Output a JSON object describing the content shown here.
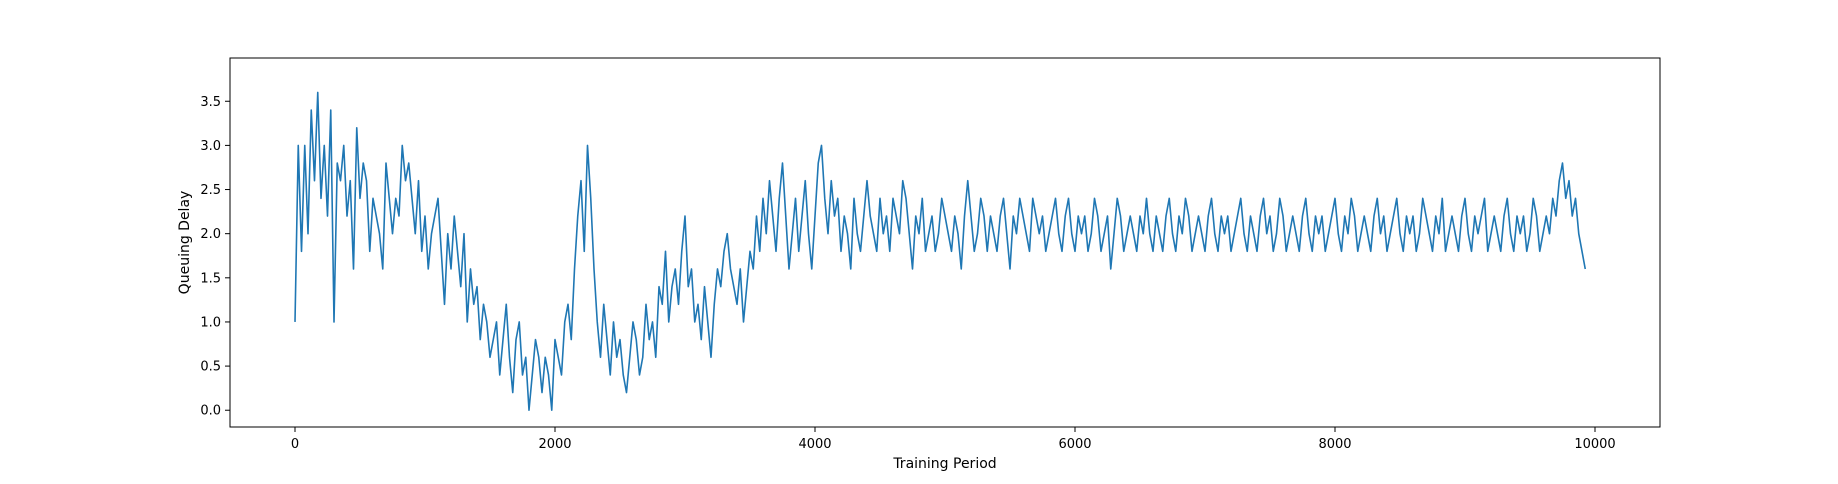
{
  "chart_data": {
    "type": "line",
    "title": "",
    "xlabel": "Training Period",
    "ylabel": "Queuing Delay",
    "xlim": [
      -500,
      10500
    ],
    "ylim": [
      -0.19,
      3.99
    ],
    "x_ticks": [
      0,
      2000,
      4000,
      6000,
      8000,
      10000
    ],
    "x_tick_labels": [
      "0",
      "2000",
      "4000",
      "6000",
      "8000",
      "10000"
    ],
    "y_ticks": [
      0.0,
      0.5,
      1.0,
      1.5,
      2.0,
      2.5,
      3.0,
      3.5
    ],
    "y_tick_labels": [
      "0.0",
      "0.5",
      "1.0",
      "1.5",
      "2.0",
      "2.5",
      "3.0",
      "3.5"
    ],
    "grid": false,
    "legend": "none",
    "colors": {
      "line": "#1f77b4",
      "axes": "#000000",
      "background": "#ffffff"
    },
    "series": [
      {
        "x_start": 0,
        "x_step": 25,
        "values": [
          1.0,
          3.0,
          1.8,
          3.0,
          2.0,
          3.4,
          2.6,
          3.6,
          2.4,
          3.0,
          2.2,
          3.4,
          1.0,
          2.8,
          2.6,
          3.0,
          2.2,
          2.6,
          1.6,
          3.2,
          2.4,
          2.8,
          2.6,
          1.8,
          2.4,
          2.2,
          2.0,
          1.6,
          2.8,
          2.4,
          2.0,
          2.4,
          2.2,
          3.0,
          2.6,
          2.8,
          2.4,
          2.0,
          2.6,
          1.8,
          2.2,
          1.6,
          2.0,
          2.2,
          2.4,
          1.8,
          1.2,
          2.0,
          1.6,
          2.2,
          1.8,
          1.4,
          2.0,
          1.0,
          1.6,
          1.2,
          1.4,
          0.8,
          1.2,
          1.0,
          0.6,
          0.8,
          1.0,
          0.4,
          0.8,
          1.2,
          0.6,
          0.2,
          0.8,
          1.0,
          0.4,
          0.6,
          0.0,
          0.4,
          0.8,
          0.6,
          0.2,
          0.6,
          0.4,
          0.0,
          0.8,
          0.6,
          0.4,
          1.0,
          1.2,
          0.8,
          1.6,
          2.2,
          2.6,
          1.8,
          3.0,
          2.4,
          1.6,
          1.0,
          0.6,
          1.2,
          0.8,
          0.4,
          1.0,
          0.6,
          0.8,
          0.4,
          0.2,
          0.6,
          1.0,
          0.8,
          0.4,
          0.6,
          1.2,
          0.8,
          1.0,
          0.6,
          1.4,
          1.2,
          1.8,
          1.0,
          1.4,
          1.6,
          1.2,
          1.8,
          2.2,
          1.4,
          1.6,
          1.0,
          1.2,
          0.8,
          1.4,
          1.0,
          0.6,
          1.2,
          1.6,
          1.4,
          1.8,
          2.0,
          1.6,
          1.4,
          1.2,
          1.6,
          1.0,
          1.4,
          1.8,
          1.6,
          2.2,
          1.8,
          2.4,
          2.0,
          2.6,
          2.2,
          1.8,
          2.4,
          2.8,
          2.2,
          1.6,
          2.0,
          2.4,
          1.8,
          2.2,
          2.6,
          2.0,
          1.6,
          2.2,
          2.8,
          3.0,
          2.4,
          2.0,
          2.6,
          2.2,
          2.4,
          1.8,
          2.2,
          2.0,
          1.6,
          2.4,
          2.0,
          1.8,
          2.2,
          2.6,
          2.2,
          2.0,
          1.8,
          2.4,
          2.0,
          2.2,
          1.8,
          2.4,
          2.2,
          2.0,
          2.6,
          2.4,
          2.0,
          1.6,
          2.2,
          2.0,
          2.4,
          1.8,
          2.0,
          2.2,
          1.8,
          2.0,
          2.4,
          2.2,
          2.0,
          1.8,
          2.2,
          2.0,
          1.6,
          2.2,
          2.6,
          2.2,
          1.8,
          2.0,
          2.4,
          2.2,
          1.8,
          2.2,
          2.0,
          1.8,
          2.2,
          2.4,
          2.0,
          1.6,
          2.2,
          2.0,
          2.4,
          2.2,
          2.0,
          1.8,
          2.4,
          2.2,
          2.0,
          2.2,
          1.8,
          2.0,
          2.2,
          2.4,
          2.0,
          1.8,
          2.2,
          2.4,
          2.0,
          1.8,
          2.2,
          2.0,
          2.2,
          1.8,
          2.0,
          2.4,
          2.2,
          1.8,
          2.0,
          2.2,
          1.6,
          2.0,
          2.4,
          2.2,
          1.8,
          2.0,
          2.2,
          2.0,
          1.8,
          2.2,
          2.0,
          2.4,
          2.0,
          1.8,
          2.2,
          2.0,
          1.8,
          2.2,
          2.4,
          2.0,
          1.8,
          2.2,
          2.0,
          2.4,
          2.2,
          1.8,
          2.0,
          2.2,
          2.0,
          1.8,
          2.2,
          2.4,
          2.0,
          1.8,
          2.2,
          2.0,
          2.2,
          1.8,
          2.0,
          2.2,
          2.4,
          2.0,
          1.8,
          2.2,
          2.0,
          1.8,
          2.2,
          2.4,
          2.0,
          2.2,
          1.8,
          2.0,
          2.4,
          2.2,
          1.8,
          2.0,
          2.2,
          2.0,
          1.8,
          2.2,
          2.4,
          2.0,
          1.8,
          2.2,
          2.0,
          2.2,
          1.8,
          2.0,
          2.2,
          2.4,
          2.0,
          1.8,
          2.2,
          2.0,
          2.4,
          2.2,
          1.8,
          2.0,
          2.2,
          2.0,
          1.8,
          2.2,
          2.4,
          2.0,
          2.2,
          1.8,
          2.0,
          2.2,
          2.4,
          2.0,
          1.8,
          2.2,
          2.0,
          2.2,
          1.8,
          2.0,
          2.4,
          2.2,
          2.0,
          1.8,
          2.2,
          2.0,
          2.4,
          1.8,
          2.0,
          2.2,
          2.0,
          1.8,
          2.2,
          2.4,
          2.0,
          1.8,
          2.2,
          2.0,
          2.2,
          2.4,
          1.8,
          2.0,
          2.2,
          2.0,
          1.8,
          2.2,
          2.4,
          2.0,
          1.8,
          2.2,
          2.0,
          2.2,
          1.8,
          2.0,
          2.4,
          2.2,
          1.8,
          2.0,
          2.2,
          2.0,
          2.4,
          2.2,
          2.6,
          2.8,
          2.4,
          2.6,
          2.2,
          2.4,
          2.0,
          1.8,
          1.6
        ]
      }
    ]
  }
}
